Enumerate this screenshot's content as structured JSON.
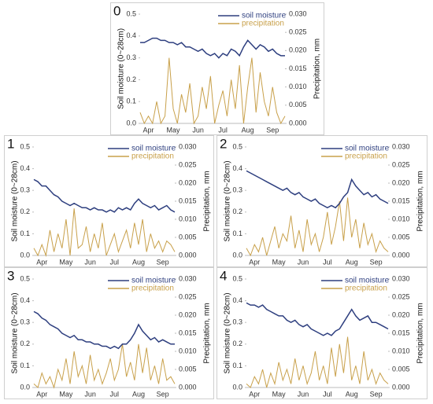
{
  "chart_data": [
    {
      "type": "line",
      "title": "0",
      "y_label": "Soil moisture (0~28cm)",
      "y2_label": "Precipitation, mm",
      "categories": [
        null,
        null,
        "Apr",
        null,
        null,
        null,
        null,
        null,
        "May",
        null,
        null,
        null,
        null,
        null,
        "Jun",
        null,
        null,
        null,
        null,
        null,
        "Jul",
        null,
        null,
        null,
        null,
        null,
        "Aug",
        null,
        null,
        null,
        null,
        null,
        "Sep",
        null,
        null,
        null
      ],
      "ylim": [
        0,
        0.5
      ],
      "yticks": [
        {
          "value": 0,
          "label": "0.0"
        },
        0.1,
        0.2,
        0.3,
        0.4,
        0.5
      ],
      "y2lim": [
        0,
        0.03
      ],
      "y2ticks": [
        {
          "value": 0,
          "label": "0.000"
        },
        {
          "value": 0.005,
          "label": "0.005"
        },
        {
          "value": 0.01,
          "label": "0.010"
        },
        {
          "value": 0.015,
          "label": "0.015"
        },
        {
          "value": 0.02,
          "label": "0.020"
        },
        {
          "value": 0.025,
          "label": "0.025"
        },
        {
          "value": 0.03,
          "label": "0.030"
        }
      ],
      "legend": "upper right",
      "series": [
        {
          "name": "soil moisture",
          "color": "#2e3f7f",
          "values": [
            0.37,
            0.37,
            0.38,
            0.39,
            0.39,
            0.38,
            0.38,
            0.37,
            0.37,
            0.36,
            0.37,
            0.35,
            0.35,
            0.34,
            0.33,
            0.34,
            0.32,
            0.31,
            0.32,
            0.3,
            0.32,
            0.31,
            0.34,
            0.33,
            0.31,
            0.35,
            0.38,
            0.36,
            0.34,
            0.36,
            0.35,
            0.33,
            0.34,
            0.32,
            0.31,
            0.31
          ]
        },
        {
          "name": "precipitation",
          "color": "#c8a04a",
          "axis": "y2",
          "values": [
            0.003,
            0,
            0.002,
            0,
            0.006,
            0,
            0.002,
            0.018,
            0.004,
            0,
            0.008,
            0.003,
            0.011,
            0,
            0.002,
            0.01,
            0.004,
            0.013,
            0,
            0.005,
            0.009,
            0.002,
            0.012,
            0.004,
            0.016,
            0,
            0.01,
            0.018,
            0.003,
            0.014,
            0.006,
            0.002,
            0.01,
            0.003,
            0,
            0.002
          ]
        }
      ]
    },
    {
      "type": "line",
      "title": "1",
      "y_label": "Soil moisture (0~28cm)",
      "y2_label": "Precipitation, mm",
      "categories": [
        null,
        null,
        "Apr",
        null,
        null,
        null,
        null,
        null,
        "May",
        null,
        null,
        null,
        null,
        null,
        "Jun",
        null,
        null,
        null,
        null,
        null,
        "Jul",
        null,
        null,
        null,
        null,
        null,
        "Aug",
        null,
        null,
        null,
        null,
        null,
        "Sep",
        null,
        null,
        null
      ],
      "ylim": [
        0,
        0.5
      ],
      "yticks": [
        {
          "value": 0,
          "label": "0.0"
        },
        0.1,
        0.2,
        0.3,
        0.4,
        0.5
      ],
      "y2lim": [
        0,
        0.03
      ],
      "y2ticks": [
        {
          "value": 0,
          "label": "0.000"
        },
        {
          "value": 0.005,
          "label": "0.005"
        },
        {
          "value": 0.01,
          "label": "0.010"
        },
        {
          "value": 0.015,
          "label": "0.015"
        },
        {
          "value": 0.02,
          "label": "0.020"
        },
        {
          "value": 0.025,
          "label": "0.025"
        },
        {
          "value": 0.03,
          "label": "0.030"
        }
      ],
      "legend": "upper right",
      "series": [
        {
          "name": "soil moisture",
          "color": "#2e3f7f",
          "values": [
            0.35,
            0.34,
            0.32,
            0.32,
            0.3,
            0.28,
            0.27,
            0.25,
            0.24,
            0.23,
            0.24,
            0.23,
            0.22,
            0.22,
            0.21,
            0.22,
            0.21,
            0.21,
            0.2,
            0.21,
            0.2,
            0.22,
            0.21,
            0.22,
            0.21,
            0.24,
            0.26,
            0.24,
            0.23,
            0.22,
            0.23,
            0.21,
            0.22,
            0.23,
            0.21,
            0.2
          ]
        },
        {
          "name": "precipitation",
          "color": "#c8a04a",
          "axis": "y2",
          "values": [
            0.002,
            0,
            0.003,
            0,
            0.007,
            0.001,
            0.006,
            0.002,
            0.01,
            0,
            0.013,
            0.002,
            0.003,
            0.008,
            0.001,
            0.006,
            0.002,
            0.009,
            0,
            0.003,
            0.006,
            0.001,
            0.004,
            0.007,
            0.002,
            0.009,
            0.003,
            0.01,
            0.001,
            0.006,
            0.002,
            0.004,
            0.001,
            0.004,
            0.003,
            0.001
          ]
        }
      ]
    },
    {
      "type": "line",
      "title": "2",
      "y_label": "Soil moisture (0~28cm)",
      "y2_label": "Precipitation, mm",
      "categories": [
        null,
        null,
        "Apr",
        null,
        null,
        null,
        null,
        null,
        "May",
        null,
        null,
        null,
        null,
        null,
        "Jun",
        null,
        null,
        null,
        null,
        null,
        "Jul",
        null,
        null,
        null,
        null,
        null,
        "Aug",
        null,
        null,
        null,
        null,
        null,
        "Sep",
        null,
        null,
        null
      ],
      "ylim": [
        0,
        0.5
      ],
      "yticks": [
        {
          "value": 0,
          "label": "0.0"
        },
        0.1,
        0.2,
        0.3,
        0.4,
        0.5
      ],
      "y2lim": [
        0,
        0.03
      ],
      "y2ticks": [
        {
          "value": 0,
          "label": "0.000"
        },
        {
          "value": 0.005,
          "label": "0.005"
        },
        {
          "value": 0.01,
          "label": "0.010"
        },
        {
          "value": 0.015,
          "label": "0.015"
        },
        {
          "value": 0.02,
          "label": "0.020"
        },
        {
          "value": 0.025,
          "label": "0.025"
        },
        {
          "value": 0.03,
          "label": "0.030"
        }
      ],
      "legend": "upper right",
      "series": [
        {
          "name": "soil moisture",
          "color": "#2e3f7f",
          "values": [
            0.39,
            0.38,
            0.37,
            0.36,
            0.35,
            0.34,
            0.33,
            0.32,
            0.31,
            0.3,
            0.31,
            0.29,
            0.28,
            0.29,
            0.27,
            0.26,
            0.25,
            0.26,
            0.24,
            0.23,
            0.22,
            0.23,
            0.22,
            0.24,
            0.27,
            0.29,
            0.35,
            0.32,
            0.3,
            0.28,
            0.29,
            0.27,
            0.28,
            0.26,
            0.25,
            0.24
          ]
        },
        {
          "name": "precipitation",
          "color": "#c8a04a",
          "axis": "y2",
          "values": [
            0.002,
            0,
            0.003,
            0.001,
            0.005,
            0,
            0.004,
            0.008,
            0.002,
            0.006,
            0.004,
            0.011,
            0.002,
            0.007,
            0.001,
            0.01,
            0.003,
            0.006,
            0.001,
            0.005,
            0.012,
            0.003,
            0.008,
            0.015,
            0.004,
            0.016,
            0.005,
            0.01,
            0.002,
            0.009,
            0.003,
            0.006,
            0.001,
            0.004,
            0.002,
            0.001
          ]
        }
      ]
    },
    {
      "type": "line",
      "title": "3",
      "y_label": "Soil moisture (0~28cm)",
      "y2_label": "Precipitation, mm",
      "categories": [
        null,
        null,
        "Apr",
        null,
        null,
        null,
        null,
        null,
        "May",
        null,
        null,
        null,
        null,
        null,
        "Jun",
        null,
        null,
        null,
        null,
        null,
        "Jul",
        null,
        null,
        null,
        null,
        null,
        "Aug",
        null,
        null,
        null,
        null,
        null,
        "Sep",
        null,
        null,
        null
      ],
      "ylim": [
        0,
        0.5
      ],
      "yticks": [
        {
          "value": 0,
          "label": "0.0"
        },
        0.1,
        0.2,
        0.3,
        0.4,
        0.5
      ],
      "y2lim": [
        0,
        0.03
      ],
      "y2ticks": [
        {
          "value": 0,
          "label": "0.000"
        },
        {
          "value": 0.005,
          "label": "0.005"
        },
        {
          "value": 0.01,
          "label": "0.010"
        },
        {
          "value": 0.015,
          "label": "0.015"
        },
        {
          "value": 0.02,
          "label": "0.020"
        },
        {
          "value": 0.025,
          "label": "0.025"
        },
        {
          "value": 0.03,
          "label": "0.030"
        }
      ],
      "legend": "upper right",
      "series": [
        {
          "name": "soil moisture",
          "color": "#2e3f7f",
          "values": [
            0.35,
            0.34,
            0.32,
            0.31,
            0.29,
            0.28,
            0.27,
            0.25,
            0.24,
            0.23,
            0.24,
            0.22,
            0.22,
            0.21,
            0.21,
            0.2,
            0.2,
            0.19,
            0.19,
            0.18,
            0.19,
            0.18,
            0.2,
            0.2,
            0.22,
            0.25,
            0.29,
            0.26,
            0.24,
            0.22,
            0.23,
            0.21,
            0.22,
            0.21,
            0.2,
            0.2
          ]
        },
        {
          "name": "precipitation",
          "color": "#c8a04a",
          "axis": "y2",
          "values": [
            0.001,
            0,
            0.004,
            0.001,
            0.003,
            0,
            0.005,
            0.002,
            0.008,
            0.001,
            0.01,
            0.003,
            0.006,
            0.001,
            0.009,
            0.002,
            0.005,
            0.001,
            0.004,
            0.008,
            0.002,
            0.005,
            0.012,
            0.003,
            0.007,
            0.002,
            0.012,
            0.004,
            0.011,
            0.002,
            0.006,
            0.001,
            0.008,
            0.002,
            0.003,
            0.001
          ]
        }
      ]
    },
    {
      "type": "line",
      "title": "4",
      "y_label": "Soil moisture (0~28cm)",
      "y2_label": "Precipitation, mm",
      "categories": [
        null,
        null,
        "Apr",
        null,
        null,
        null,
        null,
        null,
        "May",
        null,
        null,
        null,
        null,
        null,
        "Jun",
        null,
        null,
        null,
        null,
        null,
        "Jul",
        null,
        null,
        null,
        null,
        null,
        "Aug",
        null,
        null,
        null,
        null,
        null,
        "Sep",
        null,
        null,
        null
      ],
      "ylim": [
        0,
        0.5
      ],
      "yticks": [
        {
          "value": 0,
          "label": "0.0"
        },
        0.1,
        0.2,
        0.3,
        0.4,
        0.5
      ],
      "y2lim": [
        0,
        0.03
      ],
      "y2ticks": [
        {
          "value": 0,
          "label": "0.000"
        },
        {
          "value": 0.005,
          "label": "0.005"
        },
        {
          "value": 0.01,
          "label": "0.010"
        },
        {
          "value": 0.015,
          "label": "0.015"
        },
        {
          "value": 0.02,
          "label": "0.020"
        },
        {
          "value": 0.025,
          "label": "0.025"
        },
        {
          "value": 0.03,
          "label": "0.030"
        }
      ],
      "legend": "upper right",
      "series": [
        {
          "name": "soil moisture",
          "color": "#2e3f7f",
          "values": [
            0.39,
            0.38,
            0.38,
            0.37,
            0.38,
            0.36,
            0.35,
            0.34,
            0.33,
            0.33,
            0.31,
            0.3,
            0.31,
            0.29,
            0.28,
            0.29,
            0.27,
            0.26,
            0.25,
            0.24,
            0.25,
            0.24,
            0.26,
            0.27,
            0.3,
            0.33,
            0.36,
            0.33,
            0.31,
            0.32,
            0.33,
            0.3,
            0.3,
            0.29,
            0.28,
            0.27
          ]
        },
        {
          "name": "precipitation",
          "color": "#c8a04a",
          "axis": "y2",
          "values": [
            0.001,
            0,
            0.003,
            0.001,
            0.005,
            0,
            0.004,
            0.001,
            0.007,
            0.002,
            0.005,
            0.001,
            0.008,
            0.002,
            0.006,
            0.001,
            0.004,
            0.01,
            0.002,
            0.006,
            0.001,
            0.011,
            0.003,
            0.012,
            0.004,
            0.014,
            0.002,
            0.006,
            0.001,
            0.01,
            0.002,
            0.005,
            0.001,
            0.004,
            0.002,
            0.001
          ]
        }
      ]
    }
  ]
}
